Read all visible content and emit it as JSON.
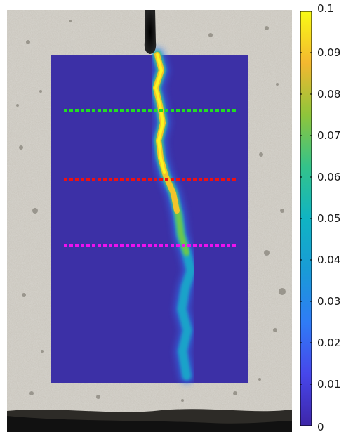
{
  "colorbar": {
    "colormap": "parula",
    "min": 0,
    "max": 0.1,
    "tick_labels": [
      "0.1",
      "0.09",
      "0.08",
      "0.07",
      "0.06",
      "0.05",
      "0.04",
      "0.03",
      "0.02",
      "0.01",
      "0"
    ]
  },
  "lines": [
    {
      "color": "#22dd22",
      "style": "dotted"
    },
    {
      "color": "#ee1111",
      "style": "dotted"
    },
    {
      "color": "#ee11ee",
      "style": "dotted"
    }
  ],
  "colors": {
    "field_background": "#3b2fa0",
    "concrete": "#c9c6be",
    "loading_pin": "#111111"
  }
}
